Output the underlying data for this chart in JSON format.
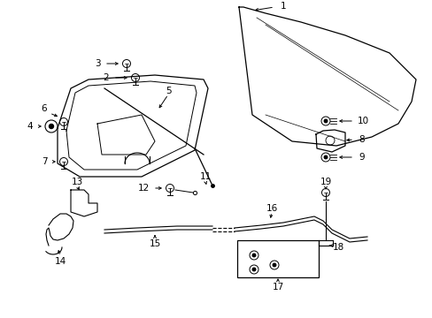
{
  "background_color": "#ffffff",
  "line_color": "#000000",
  "figsize": [
    4.89,
    3.6
  ],
  "dpi": 100,
  "label_fontsize": 7.5
}
